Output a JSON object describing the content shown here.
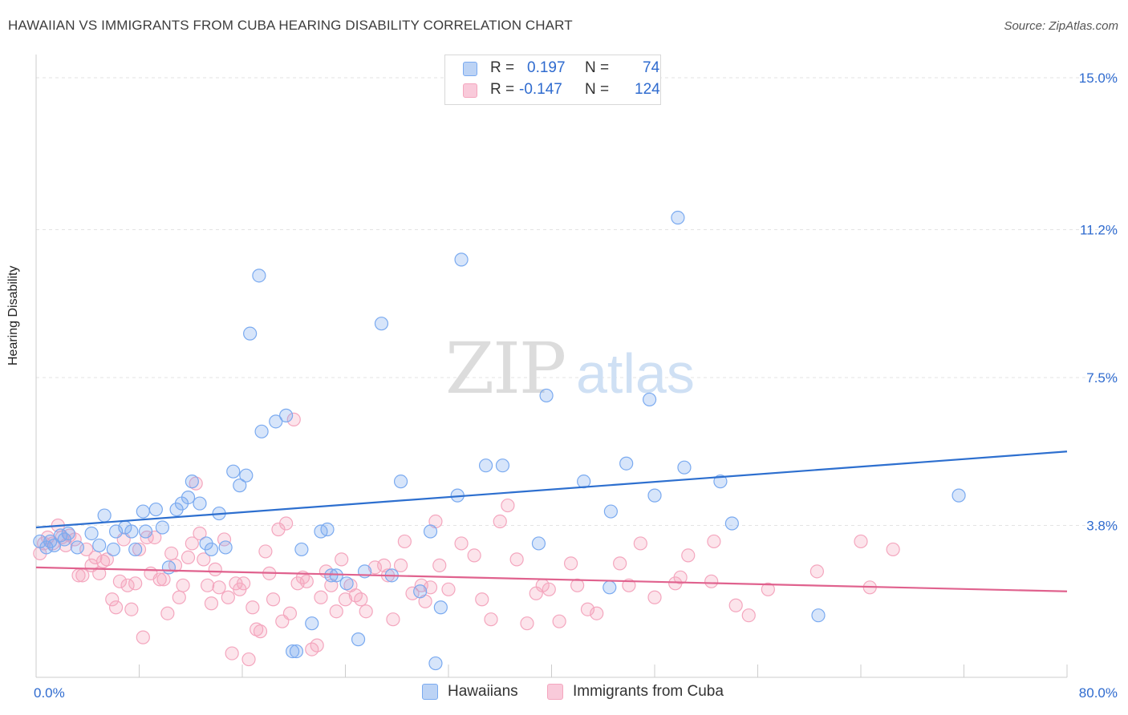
{
  "title": "HAWAIIAN VS IMMIGRANTS FROM CUBA HEARING DISABILITY CORRELATION CHART",
  "source": "Source: ZipAtlas.com",
  "watermark": {
    "zip": "ZIP",
    "atlas": "atlas"
  },
  "colors": {
    "blue": "#7aaaf0",
    "blue_line": "#2d6fcf",
    "pink": "#f4a6be",
    "pink_line": "#e0628e",
    "tick_text": "#2f6bcf"
  },
  "legend": {
    "rows": [
      {
        "r_label": "R =",
        "r_value": "0.197",
        "n_label": "N =",
        "n_value": "74"
      },
      {
        "r_label": "R =",
        "r_value": "-0.147",
        "n_label": "N =",
        "n_value": "124"
      }
    ]
  },
  "series_labels": {
    "hawaiians": "Hawaiians",
    "cuba": "Immigrants from Cuba"
  },
  "chart_data": {
    "type": "scatter",
    "title": "HAWAIIAN VS IMMIGRANTS FROM CUBA HEARING DISABILITY CORRELATION CHART",
    "xlabel": "",
    "ylabel": "Hearing Disability",
    "xlim": [
      0,
      80
    ],
    "ylim": [
      0,
      15
    ],
    "x_tick_labels": [
      "0.0%",
      "80.0%"
    ],
    "y_ticks": [
      3.8,
      7.5,
      11.2,
      15.0
    ],
    "y_tick_labels": [
      "3.8%",
      "7.5%",
      "11.2%",
      "15.0%"
    ],
    "grid": true,
    "series": [
      {
        "name": "Hawaiians",
        "r": 0.197,
        "n": 74,
        "trend": [
          [
            0,
            3.75
          ],
          [
            80,
            5.65
          ]
        ],
        "points": [
          [
            0.3,
            3.4
          ],
          [
            0.8,
            3.25
          ],
          [
            1.1,
            3.4
          ],
          [
            1.4,
            3.3
          ],
          [
            1.9,
            3.55
          ],
          [
            2.2,
            3.45
          ],
          [
            2.5,
            3.6
          ],
          [
            3.2,
            3.25
          ],
          [
            4.3,
            3.6
          ],
          [
            4.9,
            3.3
          ],
          [
            5.3,
            4.05
          ],
          [
            6.0,
            3.2
          ],
          [
            6.2,
            3.65
          ],
          [
            6.9,
            3.75
          ],
          [
            7.4,
            3.65
          ],
          [
            7.7,
            3.2
          ],
          [
            8.3,
            4.15
          ],
          [
            8.5,
            3.65
          ],
          [
            9.3,
            4.2
          ],
          [
            9.8,
            3.75
          ],
          [
            10.3,
            2.75
          ],
          [
            10.9,
            4.2
          ],
          [
            11.3,
            4.35
          ],
          [
            11.8,
            4.5
          ],
          [
            12.1,
            4.9
          ],
          [
            12.7,
            4.35
          ],
          [
            13.2,
            3.35
          ],
          [
            13.6,
            3.2
          ],
          [
            14.2,
            4.1
          ],
          [
            14.7,
            3.25
          ],
          [
            15.3,
            5.15
          ],
          [
            15.8,
            4.8
          ],
          [
            16.3,
            5.05
          ],
          [
            16.6,
            8.6
          ],
          [
            17.3,
            10.05
          ],
          [
            17.5,
            6.15
          ],
          [
            18.6,
            6.4
          ],
          [
            19.4,
            6.55
          ],
          [
            20.6,
            3.2
          ],
          [
            21.4,
            1.35
          ],
          [
            22.1,
            3.65
          ],
          [
            22.6,
            3.7
          ],
          [
            22.9,
            2.55
          ],
          [
            23.3,
            2.55
          ],
          [
            24.1,
            2.35
          ],
          [
            25.0,
            0.95
          ],
          [
            25.5,
            2.65
          ],
          [
            26.8,
            8.85
          ],
          [
            27.6,
            2.55
          ],
          [
            28.3,
            4.9
          ],
          [
            29.8,
            2.15
          ],
          [
            30.6,
            3.65
          ],
          [
            31.0,
            0.35
          ],
          [
            31.4,
            1.75
          ],
          [
            32.7,
            4.55
          ],
          [
            33.0,
            10.45
          ],
          [
            34.9,
            5.3
          ],
          [
            36.2,
            5.3
          ],
          [
            39.0,
            3.35
          ],
          [
            39.6,
            7.05
          ],
          [
            42.5,
            4.9
          ],
          [
            44.6,
            4.15
          ],
          [
            44.5,
            2.25
          ],
          [
            45.8,
            5.35
          ],
          [
            47.6,
            6.95
          ],
          [
            48.0,
            4.55
          ],
          [
            49.8,
            11.5
          ],
          [
            50.3,
            5.25
          ],
          [
            53.1,
            4.9
          ],
          [
            54.0,
            3.85
          ],
          [
            60.7,
            1.55
          ],
          [
            71.6,
            4.55
          ],
          [
            20.2,
            0.65
          ],
          [
            19.9,
            0.65
          ]
        ]
      },
      {
        "name": "Immigrants from Cuba",
        "r": -0.147,
        "n": 124,
        "trend": [
          [
            0,
            2.75
          ],
          [
            80,
            2.15
          ]
        ],
        "points": [
          [
            0.3,
            3.1
          ],
          [
            0.6,
            3.35
          ],
          [
            0.9,
            3.5
          ],
          [
            1.3,
            3.35
          ],
          [
            1.7,
            3.8
          ],
          [
            2.0,
            3.5
          ],
          [
            2.3,
            3.3
          ],
          [
            2.6,
            3.55
          ],
          [
            3.0,
            3.45
          ],
          [
            3.3,
            2.55
          ],
          [
            3.6,
            2.55
          ],
          [
            3.9,
            3.2
          ],
          [
            4.3,
            2.8
          ],
          [
            4.6,
            3.0
          ],
          [
            4.9,
            2.6
          ],
          [
            5.2,
            2.9
          ],
          [
            5.5,
            2.95
          ],
          [
            5.9,
            1.95
          ],
          [
            6.2,
            1.75
          ],
          [
            6.5,
            2.4
          ],
          [
            6.8,
            3.45
          ],
          [
            7.1,
            2.3
          ],
          [
            7.4,
            1.7
          ],
          [
            7.7,
            2.35
          ],
          [
            8.0,
            3.2
          ],
          [
            8.3,
            1.0
          ],
          [
            8.6,
            3.5
          ],
          [
            8.9,
            2.6
          ],
          [
            9.2,
            3.5
          ],
          [
            9.6,
            2.45
          ],
          [
            9.9,
            2.45
          ],
          [
            10.2,
            1.6
          ],
          [
            10.5,
            3.1
          ],
          [
            10.8,
            2.8
          ],
          [
            11.1,
            2.0
          ],
          [
            11.4,
            2.3
          ],
          [
            11.8,
            3.0
          ],
          [
            12.1,
            3.35
          ],
          [
            12.4,
            4.85
          ],
          [
            12.7,
            3.6
          ],
          [
            13.0,
            2.95
          ],
          [
            13.3,
            2.3
          ],
          [
            13.6,
            1.85
          ],
          [
            13.9,
            2.7
          ],
          [
            14.2,
            2.25
          ],
          [
            14.6,
            3.45
          ],
          [
            14.9,
            2.0
          ],
          [
            15.2,
            0.6
          ],
          [
            15.5,
            2.35
          ],
          [
            15.8,
            2.2
          ],
          [
            16.1,
            2.35
          ],
          [
            16.5,
            0.45
          ],
          [
            16.8,
            1.75
          ],
          [
            17.1,
            1.2
          ],
          [
            17.4,
            1.15
          ],
          [
            17.8,
            3.15
          ],
          [
            18.1,
            2.6
          ],
          [
            18.4,
            1.95
          ],
          [
            18.8,
            3.7
          ],
          [
            19.1,
            1.4
          ],
          [
            19.4,
            3.85
          ],
          [
            19.7,
            1.6
          ],
          [
            20.0,
            6.45
          ],
          [
            20.3,
            2.35
          ],
          [
            20.7,
            2.5
          ],
          [
            21.0,
            2.4
          ],
          [
            21.4,
            0.7
          ],
          [
            21.8,
            0.8
          ],
          [
            22.1,
            2.0
          ],
          [
            22.5,
            2.65
          ],
          [
            22.9,
            2.3
          ],
          [
            23.3,
            1.65
          ],
          [
            23.7,
            2.95
          ],
          [
            24.0,
            1.95
          ],
          [
            24.4,
            2.3
          ],
          [
            24.8,
            2.05
          ],
          [
            25.2,
            1.95
          ],
          [
            25.6,
            1.65
          ],
          [
            26.3,
            2.75
          ],
          [
            27.0,
            2.8
          ],
          [
            27.3,
            2.55
          ],
          [
            27.7,
            1.45
          ],
          [
            28.3,
            2.8
          ],
          [
            28.6,
            3.4
          ],
          [
            29.2,
            2.1
          ],
          [
            29.9,
            2.3
          ],
          [
            30.2,
            1.9
          ],
          [
            30.6,
            2.25
          ],
          [
            31.0,
            3.9
          ],
          [
            31.3,
            2.8
          ],
          [
            32.0,
            2.2
          ],
          [
            33.0,
            3.35
          ],
          [
            34.0,
            3.05
          ],
          [
            34.6,
            1.95
          ],
          [
            35.3,
            1.45
          ],
          [
            36.0,
            3.9
          ],
          [
            36.6,
            4.3
          ],
          [
            37.3,
            2.95
          ],
          [
            38.1,
            1.35
          ],
          [
            38.8,
            2.1
          ],
          [
            39.3,
            2.3
          ],
          [
            39.8,
            2.2
          ],
          [
            40.6,
            1.4
          ],
          [
            41.5,
            2.85
          ],
          [
            42.0,
            2.3
          ],
          [
            42.8,
            1.7
          ],
          [
            43.5,
            1.6
          ],
          [
            45.3,
            2.85
          ],
          [
            46.0,
            2.3
          ],
          [
            46.9,
            3.35
          ],
          [
            48.0,
            2.0
          ],
          [
            49.6,
            2.35
          ],
          [
            50.0,
            2.5
          ],
          [
            50.6,
            3.05
          ],
          [
            52.6,
            3.4
          ],
          [
            52.4,
            2.4
          ],
          [
            54.3,
            1.8
          ],
          [
            55.3,
            1.55
          ],
          [
            56.8,
            2.2
          ],
          [
            60.6,
            2.65
          ],
          [
            64.0,
            3.4
          ],
          [
            64.7,
            2.25
          ],
          [
            66.5,
            3.2
          ]
        ]
      }
    ]
  }
}
